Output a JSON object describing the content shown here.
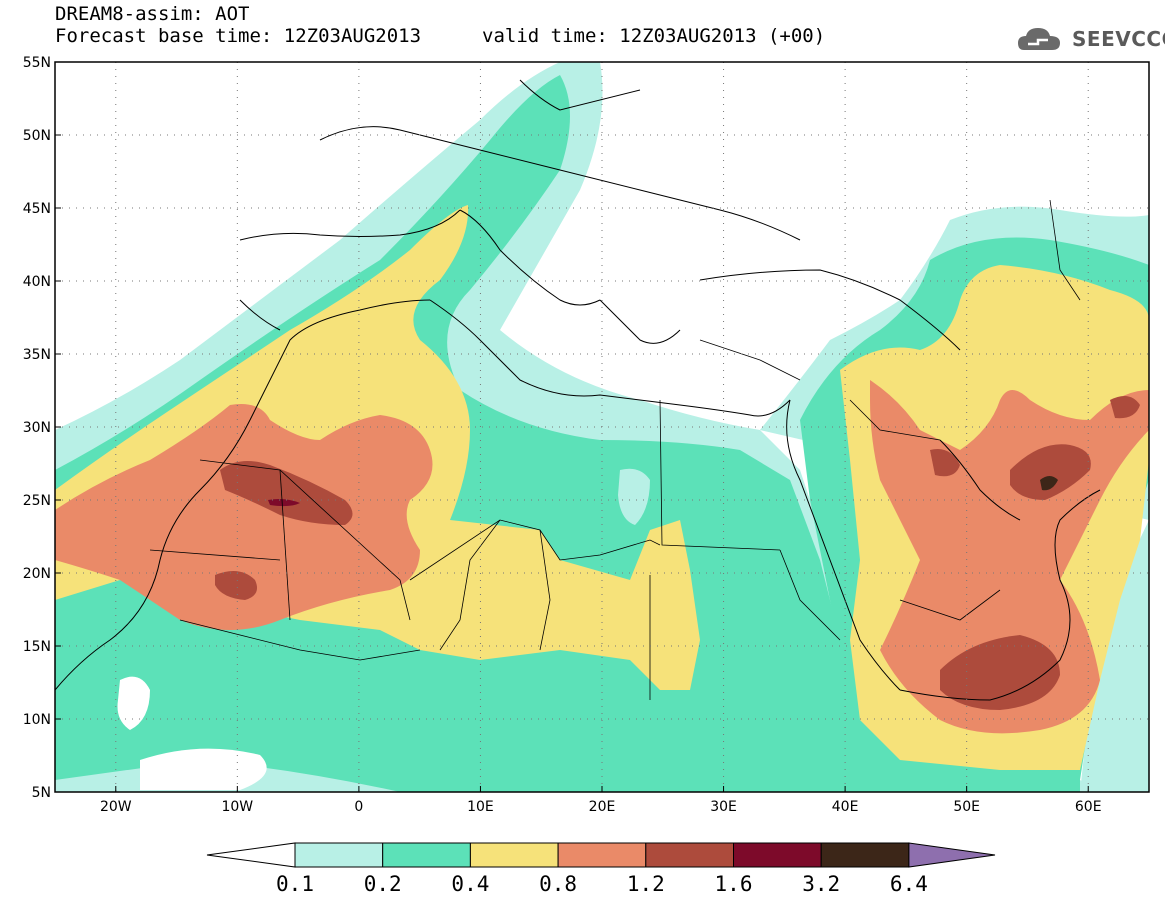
{
  "header": {
    "title_line1": "DREAM8-assim: AOT",
    "title_line2": "Forecast base time: 12Z03AUG2013",
    "valid_time": "valid time: 12Z03AUG2013 (+00)",
    "logo_text": "SEEVCCC"
  },
  "axes": {
    "lat_labels": [
      "55N",
      "50N",
      "45N",
      "40N",
      "35N",
      "30N",
      "25N",
      "20N",
      "15N",
      "10N",
      "5N"
    ],
    "lon_labels": [
      "20W",
      "10W",
      "0",
      "10E",
      "20E",
      "30E",
      "40E",
      "50E",
      "60E"
    ],
    "lat_range": [
      5,
      55
    ],
    "lon_range": [
      -25,
      65
    ]
  },
  "colorbar": {
    "labels": [
      "0.1",
      "0.2",
      "0.4",
      "0.8",
      "1.2",
      "1.6",
      "3.2",
      "6.4"
    ],
    "colors": [
      "#ffffff",
      "#b8f0e6",
      "#5ce1b8",
      "#f6e27a",
      "#ea8a68",
      "#ad4b3c",
      "#7d0a2a",
      "#3c2618",
      "#8e6fae"
    ]
  },
  "colors": {
    "c1": "#b8f0e6",
    "c2": "#5ce1b8",
    "c3": "#f6e27a",
    "c4": "#ea8a68",
    "c5": "#ad4b3c",
    "c6": "#7d0a2a"
  }
}
